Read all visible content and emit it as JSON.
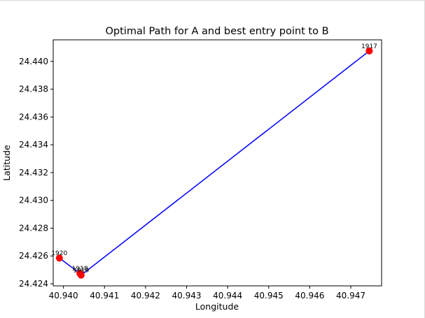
{
  "chart_data": {
    "type": "line",
    "title": "Optimal Path for A and best entry point to B",
    "xlabel": "Longitude",
    "ylabel": "Latitude",
    "xlim": [
      40.93975,
      40.94775
    ],
    "ylim": [
      24.42385,
      24.44155
    ],
    "xticks": [
      40.94,
      40.941,
      40.942,
      40.943,
      40.944,
      40.945,
      40.946,
      40.947
    ],
    "xtick_labels": [
      "40.940",
      "40.941",
      "40.942",
      "40.943",
      "40.944",
      "40.945",
      "40.946",
      "40.947"
    ],
    "yticks": [
      24.424,
      24.426,
      24.428,
      24.43,
      24.432,
      24.434,
      24.436,
      24.438,
      24.44
    ],
    "ytick_labels": [
      "24.424",
      "24.426",
      "24.428",
      "24.430",
      "24.432",
      "24.434",
      "24.436",
      "24.438",
      "24.440"
    ],
    "grid": false,
    "line_color": "#0000ff",
    "marker_color": "#ff0000",
    "path": [
      {
        "label": "1920",
        "x": 40.9399,
        "y": 24.42585
      },
      {
        "label": "1918",
        "x": 40.9404,
        "y": 24.42475
      },
      {
        "label": "1919",
        "x": 40.94043,
        "y": 24.42462
      },
      {
        "label": "1917",
        "x": 40.94745,
        "y": 24.44075
      }
    ]
  }
}
